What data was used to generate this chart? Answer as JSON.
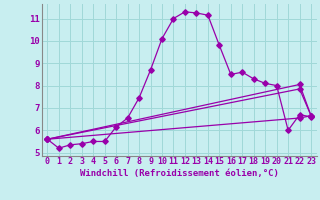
{
  "xlabel": "Windchill (Refroidissement éolien,°C)",
  "background_color": "#c8eef0",
  "grid_color": "#a0d8d8",
  "line_color": "#9900aa",
  "spine_color": "#888888",
  "xlim": [
    -0.5,
    23.5
  ],
  "ylim": [
    4.85,
    11.65
  ],
  "yticks": [
    5,
    6,
    7,
    8,
    9,
    10,
    11
  ],
  "xticks": [
    0,
    1,
    2,
    3,
    4,
    5,
    6,
    7,
    8,
    9,
    10,
    11,
    12,
    13,
    14,
    15,
    16,
    17,
    18,
    19,
    20,
    21,
    22,
    23
  ],
  "series1_x": [
    0,
    1,
    2,
    3,
    4,
    5,
    6,
    7,
    8,
    9,
    10,
    11,
    12,
    13,
    14,
    15,
    16,
    17,
    18,
    19,
    20,
    21,
    22,
    23
  ],
  "series1_y": [
    5.6,
    5.2,
    5.35,
    5.4,
    5.5,
    5.5,
    6.15,
    6.55,
    7.45,
    8.7,
    10.1,
    11.0,
    11.3,
    11.25,
    11.15,
    9.8,
    8.5,
    8.6,
    8.3,
    8.1,
    8.0,
    6.0,
    6.7,
    6.6
  ],
  "series2_x": [
    0,
    22,
    23
  ],
  "series2_y": [
    5.6,
    8.05,
    6.65
  ],
  "series3_x": [
    0,
    22,
    23
  ],
  "series3_y": [
    5.6,
    7.85,
    6.65
  ],
  "series4_x": [
    0,
    22,
    23
  ],
  "series4_y": [
    5.6,
    6.55,
    6.65
  ],
  "tick_fontsize": 6.0,
  "xlabel_fontsize": 6.5,
  "tick_color": "#9900aa"
}
